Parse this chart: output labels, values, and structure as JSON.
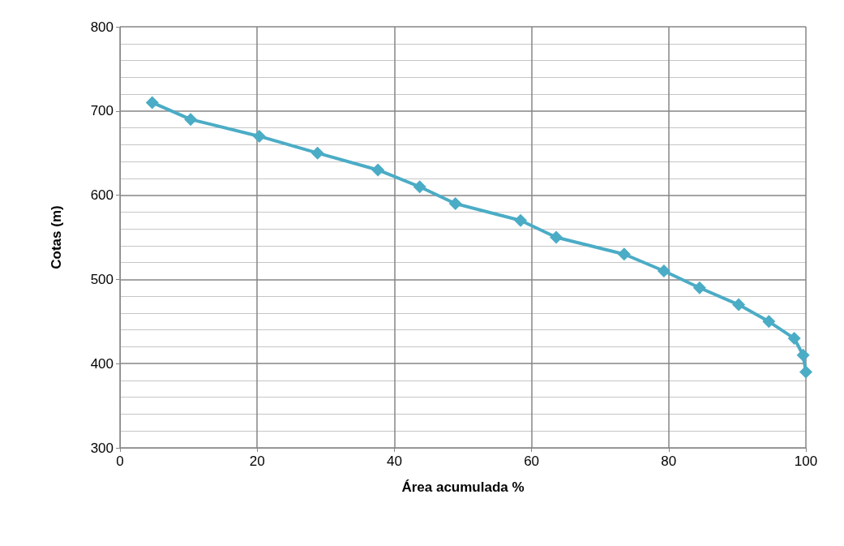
{
  "chart_data": {
    "type": "line",
    "xlabel": "Área acumulada %",
    "ylabel": "Cotas (m)",
    "x": [
      4.7,
      10.3,
      20.3,
      28.8,
      37.6,
      43.7,
      48.9,
      58.4,
      63.6,
      73.5,
      79.3,
      84.5,
      90.2,
      94.6,
      98.3,
      99.6,
      100
    ],
    "series": [
      {
        "color": "#4bacc6",
        "values": [
          710,
          690,
          670,
          650,
          630,
          610,
          590,
          570,
          550,
          530,
          510,
          490,
          470,
          450,
          430,
          410,
          390
        ]
      }
    ],
    "xlim": [
      0,
      100
    ],
    "xticks": [
      0,
      20,
      40,
      60,
      80,
      100
    ],
    "ylim": [
      300,
      800
    ],
    "yticks": [
      300,
      400,
      500,
      600,
      700,
      800
    ],
    "grid": true,
    "marker": "diamond",
    "line_style": "solid"
  }
}
